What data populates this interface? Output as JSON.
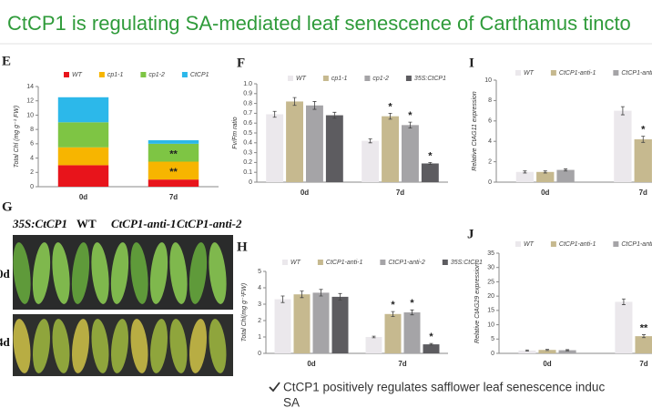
{
  "title": "CtCP1 is regulating SA-mediated leaf senescence of Carthamus tincto",
  "photo": {
    "panel": "G",
    "columns": [
      "35S:CtCP1",
      "WT",
      "CtCP1-anti-1",
      "CtCP1-anti-2"
    ],
    "rows": [
      "0d",
      "4d"
    ]
  },
  "bullet": {
    "line1": "CtCP1 positively regulates safflower leaf senescence induc",
    "line2": "SA"
  },
  "chart_data": [
    {
      "panel": "E",
      "type": "stacked_bar",
      "ylabel": "Total Chl (mg g⁻¹ FW)",
      "categories": [
        "0d",
        "7d"
      ],
      "ylim": [
        0,
        14
      ],
      "yticks": [
        0,
        2,
        4,
        6,
        8,
        10,
        12,
        14
      ],
      "series": [
        {
          "name": "WT",
          "color": "#e8141b",
          "values": [
            3,
            1
          ],
          "significance": [
            null,
            null
          ]
        },
        {
          "name": "cp1-1",
          "color": "#f7b500",
          "values": [
            2.5,
            2.5
          ],
          "significance": [
            null,
            "**"
          ]
        },
        {
          "name": "cp1-2",
          "color": "#7ec544",
          "values": [
            3.5,
            2.5
          ],
          "significance": [
            null,
            "**"
          ]
        },
        {
          "name": "CtCP1",
          "color": "#2cb8ea",
          "values": [
            3.5,
            0.5
          ],
          "significance": [
            null,
            null
          ]
        }
      ]
    },
    {
      "panel": "F",
      "type": "bar",
      "ylabel": "Fv/Fm ratio",
      "categories": [
        "0d",
        "7d"
      ],
      "ylim": [
        0,
        1
      ],
      "yticks": [
        0,
        0.1,
        0.2,
        0.3,
        0.4,
        0.5,
        0.6,
        0.7,
        0.8,
        0.9,
        {
          "value": 1,
          "label": "1.0"
        }
      ],
      "series": [
        {
          "name": "WT",
          "color": "#ebe8ec",
          "values": [
            0.69,
            0.42
          ],
          "errors": [
            0.03,
            0.02
          ],
          "significance": [
            null,
            null
          ]
        },
        {
          "name": "cp1-1",
          "color": "#c6b98f",
          "values": [
            0.82,
            0.67
          ],
          "errors": [
            0.04,
            0.03
          ],
          "significance": [
            null,
            "*"
          ]
        },
        {
          "name": "cp1-2",
          "color": "#a5a4a7",
          "values": [
            0.78,
            0.58
          ],
          "errors": [
            0.04,
            0.03
          ],
          "significance": [
            null,
            "*"
          ]
        },
        {
          "name": "35S:CtCP1",
          "color": "#5d5c60",
          "values": [
            0.68,
            0.19
          ],
          "errors": [
            0.03,
            0.01
          ],
          "significance": [
            null,
            "*"
          ]
        }
      ]
    },
    {
      "panel": "I",
      "type": "bar",
      "ylabel": "Relative CtAG11 expression",
      "categories": [
        "0d",
        "7d"
      ],
      "ylim": [
        0,
        10
      ],
      "yticks": [
        0,
        2,
        4,
        6,
        8,
        10
      ],
      "series": [
        {
          "name": "WT",
          "color": "#ebe8ec",
          "values": [
            1,
            7
          ],
          "errors": [
            0.1,
            0.4
          ],
          "significance": [
            null,
            null
          ]
        },
        {
          "name": "CtCP1-anti-1",
          "color": "#c6b98f",
          "values": [
            1,
            4.2
          ],
          "errors": [
            0.1,
            0.3
          ],
          "significance": [
            null,
            "*"
          ]
        },
        {
          "name": "CtCP1-anti-2",
          "color": "#a5a4a7",
          "values": [
            1.2,
            5.5
          ],
          "errors": [
            0.1,
            0.3
          ],
          "significance": [
            null,
            null
          ]
        }
      ]
    },
    {
      "panel": "H",
      "type": "bar",
      "ylabel": "Total Chl(mg g⁻¹FW)",
      "categories": [
        "0d",
        "7d"
      ],
      "ylim": [
        0,
        5
      ],
      "yticks": [
        0,
        1,
        2,
        3,
        4,
        5
      ],
      "series": [
        {
          "name": "WT",
          "color": "#ebe8ec",
          "values": [
            3.3,
            1
          ],
          "errors": [
            0.2,
            0.05
          ],
          "significance": [
            null,
            null
          ]
        },
        {
          "name": "CtCP1-anti-1",
          "color": "#c6b98f",
          "values": [
            3.6,
            2.4
          ],
          "errors": [
            0.2,
            0.15
          ],
          "significance": [
            null,
            "*"
          ]
        },
        {
          "name": "CtCP1-anti-2",
          "color": "#a5a4a7",
          "values": [
            3.7,
            2.5
          ],
          "errors": [
            0.2,
            0.15
          ],
          "significance": [
            null,
            "*"
          ]
        },
        {
          "name": "35S:CtCP1",
          "color": "#5d5c60",
          "values": [
            3.45,
            0.55
          ],
          "errors": [
            0.2,
            0.05
          ],
          "significance": [
            null,
            "*"
          ]
        }
      ]
    },
    {
      "panel": "J",
      "type": "bar",
      "ylabel": "Relative CtAG29 expression",
      "categories": [
        "0d",
        "7d"
      ],
      "ylim": [
        0,
        35
      ],
      "yticks": [
        0,
        5,
        10,
        15,
        20,
        25,
        30,
        35
      ],
      "series": [
        {
          "name": "WT",
          "color": "#ebe8ec",
          "values": [
            1,
            18
          ],
          "errors": [
            0.2,
            1
          ],
          "significance": [
            null,
            null
          ]
        },
        {
          "name": "CtCP1-anti-1",
          "color": "#c6b98f",
          "values": [
            1.2,
            6
          ],
          "errors": [
            0.2,
            0.5
          ],
          "significance": [
            null,
            "**"
          ]
        },
        {
          "name": "CtCP1-anti-2",
          "color": "#a5a4a7",
          "values": [
            1.1,
            6.3
          ],
          "errors": [
            0.2,
            0.5
          ],
          "significance": [
            null,
            "*"
          ]
        }
      ]
    }
  ]
}
